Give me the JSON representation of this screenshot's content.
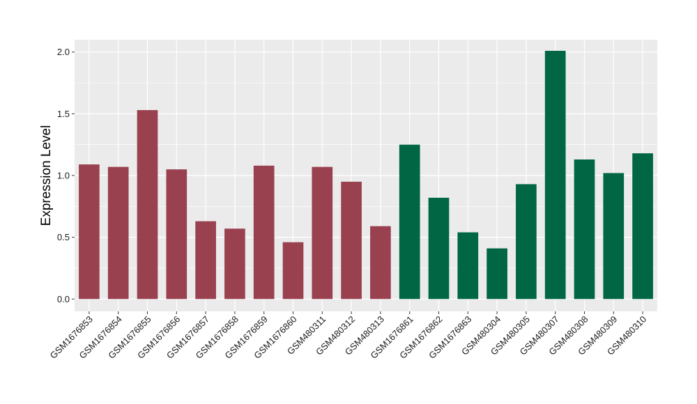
{
  "chart_data": {
    "type": "bar",
    "title": "",
    "xlabel": "",
    "ylabel": "Expression Level",
    "ylim": [
      -0.1,
      2.1
    ],
    "yticks": [
      0.0,
      0.5,
      1.0,
      1.5,
      2.0
    ],
    "ytick_labels": [
      "0.0",
      "0.5",
      "1.0",
      "1.5",
      "2.0"
    ],
    "grid": true,
    "legend": "none",
    "categories": [
      "GSM1676853",
      "GSM1676854",
      "GSM1676855",
      "GSM1676856",
      "GSM1676857",
      "GSM1676858",
      "GSM1676859",
      "GSM1676860",
      "GSM480311",
      "GSM480312",
      "GSM480313",
      "GSM1676861",
      "GSM1676862",
      "GSM1676863",
      "GSM480304",
      "GSM480305",
      "GSM480307",
      "GSM480308",
      "GSM480309",
      "GSM480310"
    ],
    "values": [
      1.09,
      1.07,
      1.53,
      1.05,
      0.63,
      0.57,
      1.08,
      0.46,
      1.07,
      0.95,
      0.59,
      1.25,
      0.82,
      0.54,
      0.41,
      0.93,
      2.01,
      1.13,
      1.02,
      1.18
    ],
    "groups": [
      0,
      0,
      0,
      0,
      0,
      0,
      0,
      0,
      0,
      0,
      0,
      1,
      1,
      1,
      1,
      1,
      1,
      1,
      1,
      1
    ],
    "group_colors": [
      "#9A4150",
      "#006644"
    ],
    "panel_background": "#EBEBEB",
    "grid_color": "#FFFFFF"
  }
}
